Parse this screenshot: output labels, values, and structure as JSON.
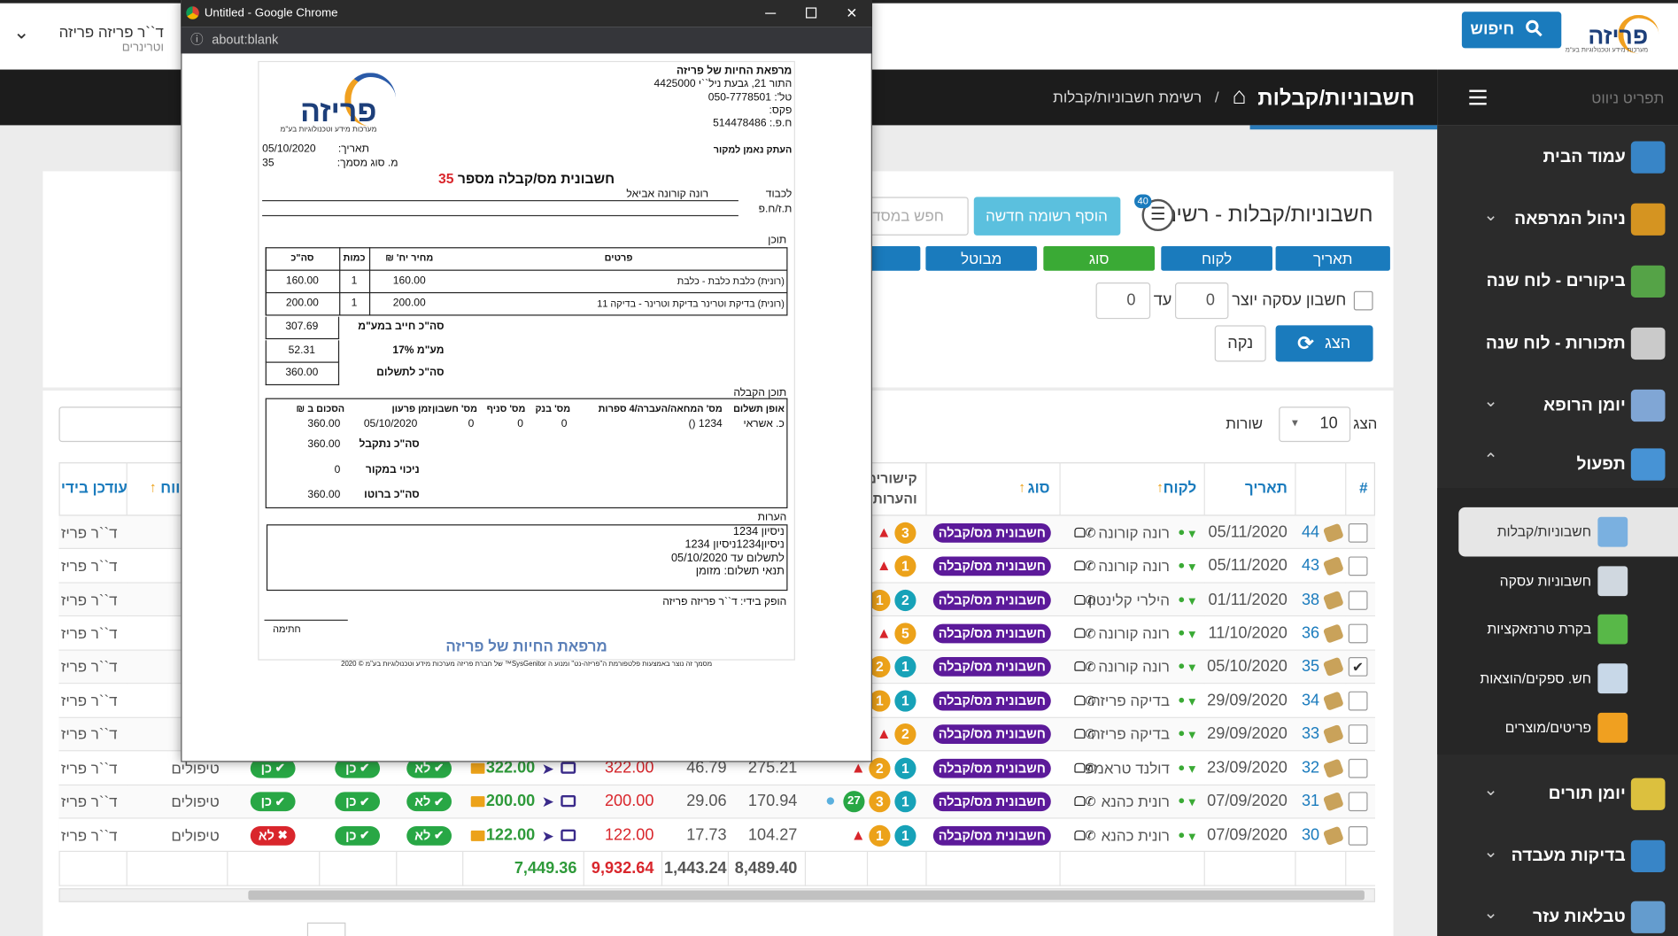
{
  "header": {
    "logo": "פריזה",
    "logo_tagline": "מערכות מידע וטכנולוגיות בע\"מ",
    "search_button": "חיפוש",
    "user_name": "ד``ר פריזה פריזה",
    "user_role": "וטרינרים"
  },
  "navbar": {
    "nav_label": "תפריט ניווט",
    "page_title": "חשבוניות/קבלות",
    "breadcrumb_separator": "/",
    "breadcrumb": "רשימת חשבוניות/קבלות"
  },
  "sidebar": {
    "items": [
      {
        "label": "עמוד הבית",
        "color": "#3a8fd8"
      },
      {
        "label": "ניהול המרפאה",
        "color": "#e8a020",
        "expandable": true
      },
      {
        "label": "ביקורים - לוח שנה",
        "color": "#5ab04a"
      },
      {
        "label": "תזכורות - לוח שנה",
        "color": "#dcdcdc"
      },
      {
        "label": "יומן הרופא",
        "color": "#8ab4e8",
        "expandable": true
      },
      {
        "label": "תפעול",
        "color": "#4a9ee8",
        "expandable": true,
        "expanded": true,
        "children": [
          {
            "label": "חשבוניות/קבלות",
            "color": "#7ab0e0",
            "active": true
          },
          {
            "label": "חשבוניות עסקה",
            "color": "#d0d8e0"
          },
          {
            "label": "בקרת טרנזאקציות",
            "color": "#58b848"
          },
          {
            "label": "חש. ספקים/הוצאות",
            "color": "#c8d8e8"
          },
          {
            "label": "פריטים/מוצרים",
            "color": "#f0a020"
          }
        ]
      },
      {
        "label": "יומן תורים",
        "color": "#f0d040",
        "expandable": true
      },
      {
        "label": "בדיקות מעבדה",
        "color": "#3a8fd8",
        "expandable": true
      },
      {
        "label": "טבלאות עזר",
        "color": "#6aa8e0",
        "expandable": true
      }
    ]
  },
  "search_panel": {
    "title": "חשבוניות/קבלות - רשימה",
    "record_count": "40",
    "add_button": "הוסף רשומה חדשה",
    "search_placeholder": "חפש במסד",
    "filters": [
      {
        "label": "תאריך",
        "color": "#1a7bbd"
      },
      {
        "label": "לקוח",
        "color": "#1a7bbd"
      },
      {
        "label": "סוג",
        "color": "#3aaa35"
      },
      {
        "label": "מבוטל",
        "color": "#1a7bbd"
      }
    ],
    "transaction_label": "חשבון עסקה יוצר מ",
    "from_value": "0",
    "to_label": "עד",
    "to_value": "0",
    "show_button": "הצג",
    "clear_button": "נקה"
  },
  "table": {
    "show_label": "הצג",
    "page_size": "10",
    "rows_label": "שורות",
    "headers": {
      "num": "#",
      "date": "תאריך",
      "client": "לקוח",
      "type": "סוג",
      "links": [
        "קישורים",
        "והערות"
      ],
      "category": "ווח",
      "updated_by": "עודכן בידי"
    },
    "rows": [
      {
        "num": "44",
        "date": "05/11/2020",
        "client": "רונה קורונה",
        "type": "חשבונית מס/קבלה",
        "warning": true,
        "badges": [
          {
            "value": "3",
            "color": "#eca21a"
          }
        ],
        "updated_by": "ד``ר פריז"
      },
      {
        "num": "43",
        "date": "05/11/2020",
        "client": "רונה קורונה",
        "type": "חשבונית מס/קבלה",
        "warning": true,
        "badges": [
          {
            "value": "1",
            "color": "#eca21a"
          }
        ],
        "updated_by": "ד``ר פריז"
      },
      {
        "num": "38",
        "date": "01/11/2020",
        "client": "הילרי קלינטון",
        "type": "חשבונית מס/קבלה",
        "badges": [
          {
            "value": "2",
            "color": "#17a2b8"
          },
          {
            "value": "1",
            "color": "#eca21a"
          }
        ],
        "updated_by": "ד``ר פריז"
      },
      {
        "num": "36",
        "date": "11/10/2020",
        "client": "רונה קורונה",
        "type": "חשבונית מס/קבלה",
        "warning": true,
        "badges": [
          {
            "value": "5",
            "color": "#eca21a"
          }
        ],
        "updated_by": "ד``ר פריז"
      },
      {
        "num": "35",
        "date": "05/10/2020",
        "client": "רונה קורונה",
        "type": "חשבונית מס/קבלה",
        "checked": true,
        "badges": [
          {
            "value": "1",
            "color": "#17a2b8"
          },
          {
            "value": "2",
            "color": "#eca21a"
          }
        ],
        "updated_by": "ד``ר פריז"
      },
      {
        "num": "34",
        "date": "29/09/2020",
        "client": "בדיקה פריזה",
        "type": "חשבונית מס/קבלה",
        "badges": [
          {
            "value": "1",
            "color": "#17a2b8"
          },
          {
            "value": "1",
            "color": "#eca21a"
          }
        ],
        "updated_by": "ד``ר פריז"
      },
      {
        "num": "33",
        "date": "29/09/2020",
        "client": "בדיקה פריזה",
        "type": "חשבונית מס/קבלה",
        "warning": true,
        "badges": [
          {
            "value": "2",
            "color": "#eca21a"
          }
        ],
        "updated_by": "ד``ר פריז"
      },
      {
        "num": "32",
        "date": "23/09/2020",
        "client": "דולנד טראמפ",
        "type": "חשבונית מס/קבלה",
        "warning": true,
        "badges": [
          {
            "value": "1",
            "color": "#17a2b8"
          },
          {
            "value": "2",
            "color": "#eca21a"
          }
        ],
        "net": "275.21",
        "vat": "46.79",
        "total": "322.00",
        "paid": "322.00",
        "flags": [
          {
            "label": "לא",
            "ok": true
          },
          {
            "label": "כן",
            "ok": true
          },
          {
            "label": "כן",
            "ok": true
          }
        ],
        "category": "טיפולים",
        "updated_by": "ד``ר פריז"
      },
      {
        "num": "31",
        "date": "07/09/2020",
        "client": "רונית כהנא",
        "type": "חשבונית מס/קבלה",
        "chat": true,
        "badges": [
          {
            "value": "1",
            "color": "#17a2b8"
          },
          {
            "value": "3",
            "color": "#eca21a"
          },
          {
            "value": "27",
            "color": "#28a745"
          }
        ],
        "net": "170.94",
        "vat": "29.06",
        "total": "200.00",
        "paid": "200.00",
        "flags": [
          {
            "label": "לא",
            "ok": true
          },
          {
            "label": "כן",
            "ok": true
          },
          {
            "label": "כן",
            "ok": true
          }
        ],
        "category": "טיפולים",
        "updated_by": "ד``ר פריז"
      },
      {
        "num": "30",
        "date": "07/09/2020",
        "client": "רונית כהנא",
        "type": "חשבונית מס/קבלה",
        "warning": true,
        "badges": [
          {
            "value": "1",
            "color": "#17a2b8"
          },
          {
            "value": "1",
            "color": "#eca21a"
          }
        ],
        "net": "104.27",
        "vat": "17.73",
        "total": "122.00",
        "paid": "122.00",
        "flags": [
          {
            "label": "לא",
            "ok": true
          },
          {
            "label": "כן",
            "ok": true
          },
          {
            "label": "לא",
            "ok": false
          }
        ],
        "category": "טיפולים",
        "updated_by": "ד``ר פריז"
      }
    ],
    "totals": {
      "net": "8,489.40",
      "vat": "1,443.24",
      "total": "9,932.64",
      "paid": "7,449.36"
    }
  },
  "popup": {
    "window_title": "Untitled - Google Chrome",
    "url": "about:blank",
    "document": {
      "logo": "פריזה",
      "logo_tagline": "מערכות מידע וטכנולוגיות בע\"מ",
      "clinic_lines": [
        "מרפאת החיות של פריזה",
        "התור 21, גבעת ניל``י 4425000",
        "טל': 050-7778501",
        "פקס:",
        "ח.פ.: 514478486"
      ],
      "copy_note": "העתק נאמן למקור",
      "date_label": "תאריך:",
      "date": "05/10/2020",
      "doc_type_label": "מ. סוג מסמך:",
      "doc_type": "35",
      "title": "חשבונית מס/קבלה מספר",
      "doc_number": "35",
      "to_label": "לכבוד",
      "to_name": "רונה קורונה אביאל",
      "id_label": "ת.ז/ח.פ",
      "content_label": "תוכן",
      "items_headers": [
        "פרטים",
        "מחיר יח' ₪",
        "כמות",
        "סה\"כ"
      ],
      "items": [
        [
          "(רונית) כלבת כלבת - כלבת",
          "160.00",
          "1",
          "160.00"
        ],
        [
          "(רונית) בדיקת וטרינר בדיקת וטרינר - בדיקה 11",
          "200.00",
          "1",
          "200.00"
        ]
      ],
      "summary": [
        {
          "label": "סה\"כ חייב במע\"מ",
          "value": "307.69"
        },
        {
          "label": "מע\"מ 17%",
          "value": "52.31"
        },
        {
          "label": "סה\"כ לתשלום",
          "value": "360.00"
        }
      ],
      "receipt_label": "תוכן הקבלה",
      "receipt_headers": [
        "אופן תשלום",
        "מס' המחאה/העברה/4 ספרות",
        "מס' בנק",
        "מס' סניף",
        "מס' חשבון",
        "זמן פרעון",
        "הסכום ב ₪"
      ],
      "receipt_row": [
        "כ. אשראי",
        "1234 ()",
        "0",
        "0",
        "0",
        "05/10/2020",
        "360.00"
      ],
      "receipt_summary": [
        {
          "label": "סה\"כ נתקבל",
          "value": "360.00"
        },
        {
          "label": "ניכוי במקור",
          "value": "0"
        },
        {
          "label": "סה\"כ ברוטו",
          "value": "360.00"
        }
      ],
      "notes_label": "הערות",
      "notes": [
        "ניסיון 1234",
        "ניסיון1234ניסיון 1234",
        "לתשלום עד 05/10/2020",
        "תנאי תשלום: מזומן"
      ],
      "produced_by": "הופק בידי: ד``ר פריזה פריזה",
      "signature": "חתימה",
      "footer_title": "מרפאת החיות של פריזה",
      "footer_note": "מסמך זה נוצר באמצעות פלטפורמת ה\"פריזה-נט\" ומנוע ה SysGenitor™ של חברת פריזה מערכות מידע וטכנולוגיות בע\"מ © 2020"
    }
  }
}
